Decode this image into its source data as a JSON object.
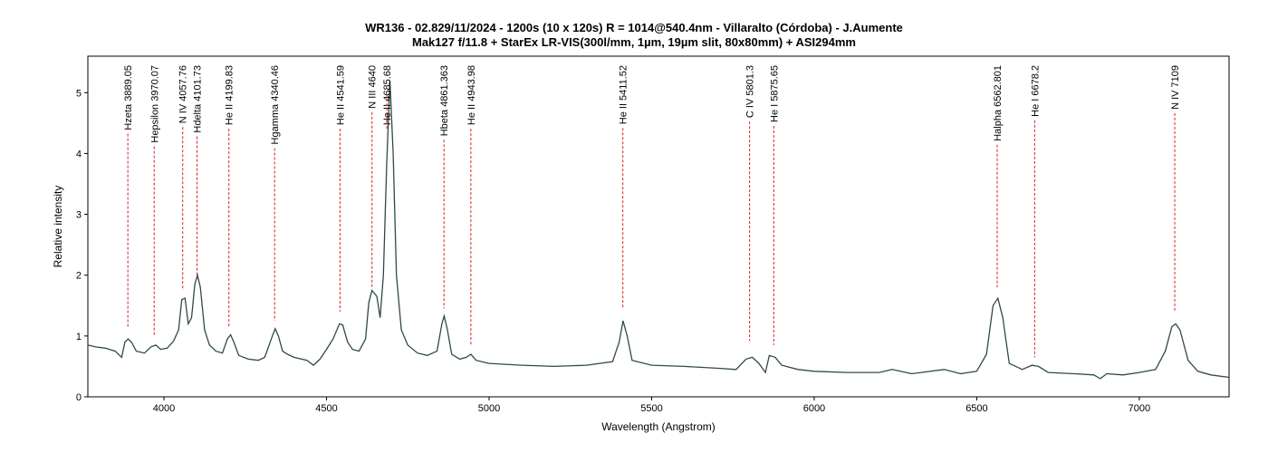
{
  "chart_data": {
    "type": "line",
    "title": "WR136 - 02.829/11/2024 - 1200s (10 x 120s) R = 1014@540.4nm - Villaralto (Córdoba) - J.Aumente",
    "subtitle": "Mak127 f/11.8 + StarEx LR-VIS(300l/mm, 1µm, 19µm slit, 80x80mm) + ASI294mm",
    "xlabel": "Wavelength (Angstrom)",
    "ylabel": "Relative intensity",
    "color": "#2f4a48",
    "annotation_color": "#d42020",
    "xlim": [
      3766,
      7276
    ],
    "ylim": [
      0,
      5.6
    ],
    "xticks": [
      4000,
      4500,
      5000,
      5500,
      6000,
      6500,
      7000
    ],
    "yticks": [
      0,
      1,
      2,
      3,
      4,
      5
    ],
    "x": [
      3766,
      3790,
      3820,
      3850,
      3870,
      3880,
      3890,
      3900,
      3915,
      3940,
      3960,
      3975,
      3990,
      4010,
      4030,
      4045,
      4055,
      4065,
      4075,
      4085,
      4095,
      4103,
      4112,
      4125,
      4140,
      4160,
      4180,
      4195,
      4205,
      4215,
      4230,
      4260,
      4290,
      4310,
      4330,
      4342,
      4352,
      4365,
      4380,
      4400,
      4440,
      4460,
      4480,
      4500,
      4520,
      4540,
      4550,
      4565,
      4580,
      4600,
      4610,
      4620,
      4630,
      4640,
      4655,
      4665,
      4675,
      4685,
      4695,
      4705,
      4715,
      4730,
      4750,
      4780,
      4810,
      4840,
      4855,
      4862,
      4872,
      4885,
      4910,
      4930,
      4944,
      4960,
      5000,
      5100,
      5200,
      5300,
      5380,
      5400,
      5412,
      5425,
      5440,
      5500,
      5600,
      5700,
      5760,
      5790,
      5810,
      5830,
      5850,
      5862,
      5880,
      5900,
      5950,
      6000,
      6100,
      6200,
      6240,
      6300,
      6400,
      6450,
      6500,
      6530,
      6550,
      6565,
      6580,
      6600,
      6640,
      6670,
      6690,
      6720,
      6800,
      6860,
      6880,
      6900,
      6950,
      7000,
      7050,
      7080,
      7100,
      7112,
      7125,
      7150,
      7180,
      7220,
      7276
    ],
    "values": [
      0.85,
      0.82,
      0.8,
      0.75,
      0.65,
      0.9,
      0.95,
      0.9,
      0.75,
      0.72,
      0.82,
      0.85,
      0.78,
      0.8,
      0.92,
      1.1,
      1.6,
      1.62,
      1.2,
      1.3,
      1.85,
      2.0,
      1.8,
      1.1,
      0.85,
      0.75,
      0.72,
      0.95,
      1.02,
      0.9,
      0.68,
      0.62,
      0.6,
      0.65,
      0.95,
      1.12,
      1.0,
      0.75,
      0.7,
      0.65,
      0.6,
      0.52,
      0.62,
      0.78,
      0.95,
      1.2,
      1.18,
      0.9,
      0.78,
      0.75,
      0.85,
      0.95,
      1.55,
      1.75,
      1.65,
      1.3,
      2.0,
      3.8,
      5.2,
      4.0,
      2.0,
      1.1,
      0.85,
      0.72,
      0.68,
      0.75,
      1.2,
      1.33,
      1.1,
      0.7,
      0.62,
      0.65,
      0.7,
      0.6,
      0.55,
      0.52,
      0.5,
      0.52,
      0.58,
      0.9,
      1.25,
      1.0,
      0.6,
      0.52,
      0.5,
      0.47,
      0.45,
      0.62,
      0.65,
      0.55,
      0.4,
      0.68,
      0.65,
      0.52,
      0.45,
      0.42,
      0.4,
      0.4,
      0.45,
      0.38,
      0.45,
      0.38,
      0.42,
      0.7,
      1.5,
      1.62,
      1.3,
      0.55,
      0.45,
      0.52,
      0.5,
      0.4,
      0.38,
      0.36,
      0.3,
      0.38,
      0.36,
      0.4,
      0.45,
      0.75,
      1.15,
      1.2,
      1.1,
      0.6,
      0.42,
      0.36,
      0.32
    ],
    "annotations": [
      {
        "label": "Hzeta 3889.05",
        "x": 3889.05,
        "y": 1.13
      },
      {
        "label": "Hepsilon 3970.07",
        "x": 3970.07,
        "y": 1.0
      },
      {
        "label": "N IV 4057.76",
        "x": 4057.76,
        "y": 1.75
      },
      {
        "label": "Hdelta 4101.73",
        "x": 4101.73,
        "y": 1.98
      },
      {
        "label": "He II 4199.83",
        "x": 4199.83,
        "y": 1.15
      },
      {
        "label": "Hgamma 4340.46",
        "x": 4340.46,
        "y": 1.25
      },
      {
        "label": "He II 4541.59",
        "x": 4541.59,
        "y": 1.4
      },
      {
        "label": "N III 4640",
        "x": 4640,
        "y": 1.8
      },
      {
        "label": "He II 4685.68",
        "x": 4685.68,
        "y": 5.0
      },
      {
        "label": "Hbeta 4861.363",
        "x": 4861.363,
        "y": 1.45
      },
      {
        "label": "He II 4943.98",
        "x": 4943.98,
        "y": 0.85
      },
      {
        "label": "He II 5411.52",
        "x": 5411.52,
        "y": 1.45
      },
      {
        "label": "C IV 5801.3",
        "x": 5801.3,
        "y": 0.92
      },
      {
        "label": "He I 5875.65",
        "x": 5875.65,
        "y": 0.85
      },
      {
        "label": "Halpha 6562.801",
        "x": 6562.801,
        "y": 1.8
      },
      {
        "label": "He I 6678.2",
        "x": 6678.2,
        "y": 0.65
      },
      {
        "label": "N IV 7109",
        "x": 7109,
        "y": 1.4
      }
    ]
  }
}
